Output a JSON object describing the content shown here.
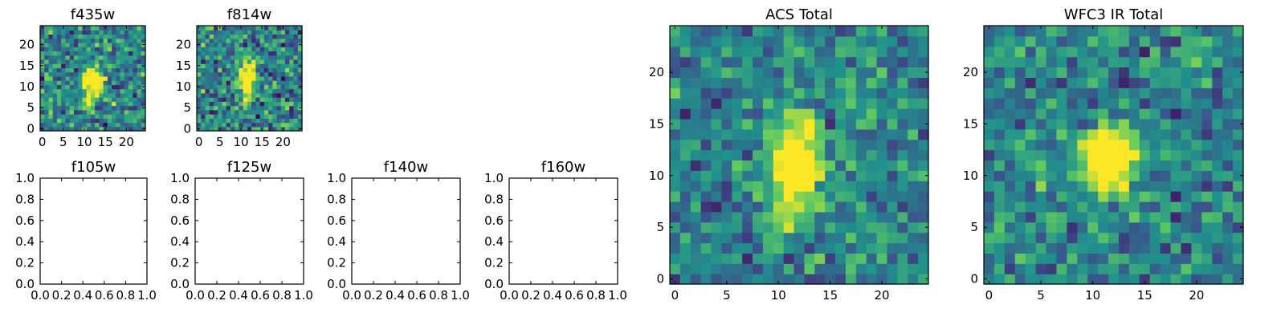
{
  "colormap": [
    "#440154",
    "#3b528b",
    "#21918c",
    "#5ec962",
    "#fde725"
  ],
  "chart_data": [
    {
      "type": "heatmap",
      "title": "f435w",
      "grid_size": 25,
      "seed": 11,
      "noise": 0.62,
      "sources": [
        {
          "x": 12,
          "y": 11.5,
          "sx": 1.6,
          "sy": 2.2,
          "amp": 1.0
        },
        {
          "x": 11.5,
          "y": 6,
          "sx": 0.8,
          "sy": 1.2,
          "amp": 0.45
        }
      ],
      "xlim": [
        -0.5,
        24.5
      ],
      "ylim": [
        -0.5,
        24.5
      ],
      "xticks": [
        0,
        5,
        10,
        15,
        20
      ],
      "yticks": [
        0,
        5,
        10,
        15,
        20
      ],
      "xticklabels": [
        "0",
        "5",
        "10",
        "15",
        "20"
      ],
      "yticklabels": [
        "0",
        "5",
        "10",
        "15",
        "20"
      ]
    },
    {
      "type": "heatmap",
      "title": "f814w",
      "grid_size": 25,
      "seed": 29,
      "noise": 0.62,
      "sources": [
        {
          "x": 11.5,
          "y": 12,
          "sx": 1.3,
          "sy": 2.6,
          "amp": 1.0
        },
        {
          "x": 11.5,
          "y": 7,
          "sx": 0.8,
          "sy": 1.4,
          "amp": 0.4
        }
      ],
      "xlim": [
        -0.5,
        24.5
      ],
      "ylim": [
        -0.5,
        24.5
      ],
      "xticks": [
        0,
        5,
        10,
        15,
        20
      ],
      "yticks": [
        0,
        5,
        10,
        15,
        20
      ],
      "xticklabels": [
        "0",
        "5",
        "10",
        "15",
        "20"
      ],
      "yticklabels": [
        "0",
        "5",
        "10",
        "15",
        "20"
      ]
    },
    {
      "type": "empty",
      "title": "f105w",
      "xlim": [
        0,
        1
      ],
      "ylim": [
        0,
        1
      ],
      "xticks": [
        0,
        0.2,
        0.4,
        0.6,
        0.8,
        1.0
      ],
      "yticks": [
        0,
        0.2,
        0.4,
        0.6,
        0.8,
        1.0
      ],
      "xticklabels": [
        "0.0",
        "0.2",
        "0.4",
        "0.6",
        "0.8",
        "1.0"
      ],
      "yticklabels": [
        "0.0",
        "0.2",
        "0.4",
        "0.6",
        "0.8",
        "1.0"
      ]
    },
    {
      "type": "empty",
      "title": "f125w",
      "xlim": [
        0,
        1
      ],
      "ylim": [
        0,
        1
      ],
      "xticks": [
        0,
        0.2,
        0.4,
        0.6,
        0.8,
        1.0
      ],
      "yticks": [
        0,
        0.2,
        0.4,
        0.6,
        0.8,
        1.0
      ],
      "xticklabels": [
        "0.0",
        "0.2",
        "0.4",
        "0.6",
        "0.8",
        "1.0"
      ],
      "yticklabels": [
        "0.0",
        "0.2",
        "0.4",
        "0.6",
        "0.8",
        "1.0"
      ]
    },
    {
      "type": "empty",
      "title": "f140w",
      "xlim": [
        0,
        1
      ],
      "ylim": [
        0,
        1
      ],
      "xticks": [
        0,
        0.2,
        0.4,
        0.6,
        0.8,
        1.0
      ],
      "yticks": [
        0,
        0.2,
        0.4,
        0.6,
        0.8,
        1.0
      ],
      "xticklabels": [
        "0.0",
        "0.2",
        "0.4",
        "0.6",
        "0.8",
        "1.0"
      ],
      "yticklabels": [
        "0.0",
        "0.2",
        "0.4",
        "0.6",
        "0.8",
        "1.0"
      ]
    },
    {
      "type": "empty",
      "title": "f160w",
      "xlim": [
        0,
        1
      ],
      "ylim": [
        0,
        1
      ],
      "xticks": [
        0,
        0.2,
        0.4,
        0.6,
        0.8,
        1.0
      ],
      "yticks": [
        0,
        0.2,
        0.4,
        0.6,
        0.8,
        1.0
      ],
      "xticklabels": [
        "0.0",
        "0.2",
        "0.4",
        "0.6",
        "0.8",
        "1.0"
      ],
      "yticklabels": [
        "0.0",
        "0.2",
        "0.4",
        "0.6",
        "0.8",
        "1.0"
      ]
    },
    {
      "type": "heatmap",
      "title": "ACS Total",
      "grid_size": 25,
      "seed": 53,
      "noise": 0.5,
      "sources": [
        {
          "x": 11.8,
          "y": 11.5,
          "sx": 1.7,
          "sy": 2.6,
          "amp": 1.0
        },
        {
          "x": 11.2,
          "y": 6.5,
          "sx": 1.0,
          "sy": 1.5,
          "amp": 0.45
        }
      ],
      "xlim": [
        -0.5,
        24.5
      ],
      "ylim": [
        -0.5,
        24.5
      ],
      "xticks": [
        0,
        5,
        10,
        15,
        20
      ],
      "yticks": [
        0,
        5,
        10,
        15,
        20
      ],
      "xticklabels": [
        "0",
        "5",
        "10",
        "15",
        "20"
      ],
      "yticklabels": [
        "0",
        "5",
        "10",
        "15",
        "20"
      ]
    },
    {
      "type": "heatmap",
      "title": "WFC3 IR Total",
      "grid_size": 25,
      "seed": 71,
      "noise": 0.5,
      "sources": [
        {
          "x": 11.5,
          "y": 11.5,
          "sx": 1.7,
          "sy": 2.1,
          "amp": 1.0
        }
      ],
      "xlim": [
        -0.5,
        24.5
      ],
      "ylim": [
        -0.5,
        24.5
      ],
      "xticks": [
        0,
        5,
        10,
        15,
        20
      ],
      "yticks": [
        0,
        5,
        10,
        15,
        20
      ],
      "xticklabels": [
        "0",
        "5",
        "10",
        "15",
        "20"
      ],
      "yticklabels": [
        "0",
        "5",
        "10",
        "15",
        "20"
      ]
    }
  ]
}
